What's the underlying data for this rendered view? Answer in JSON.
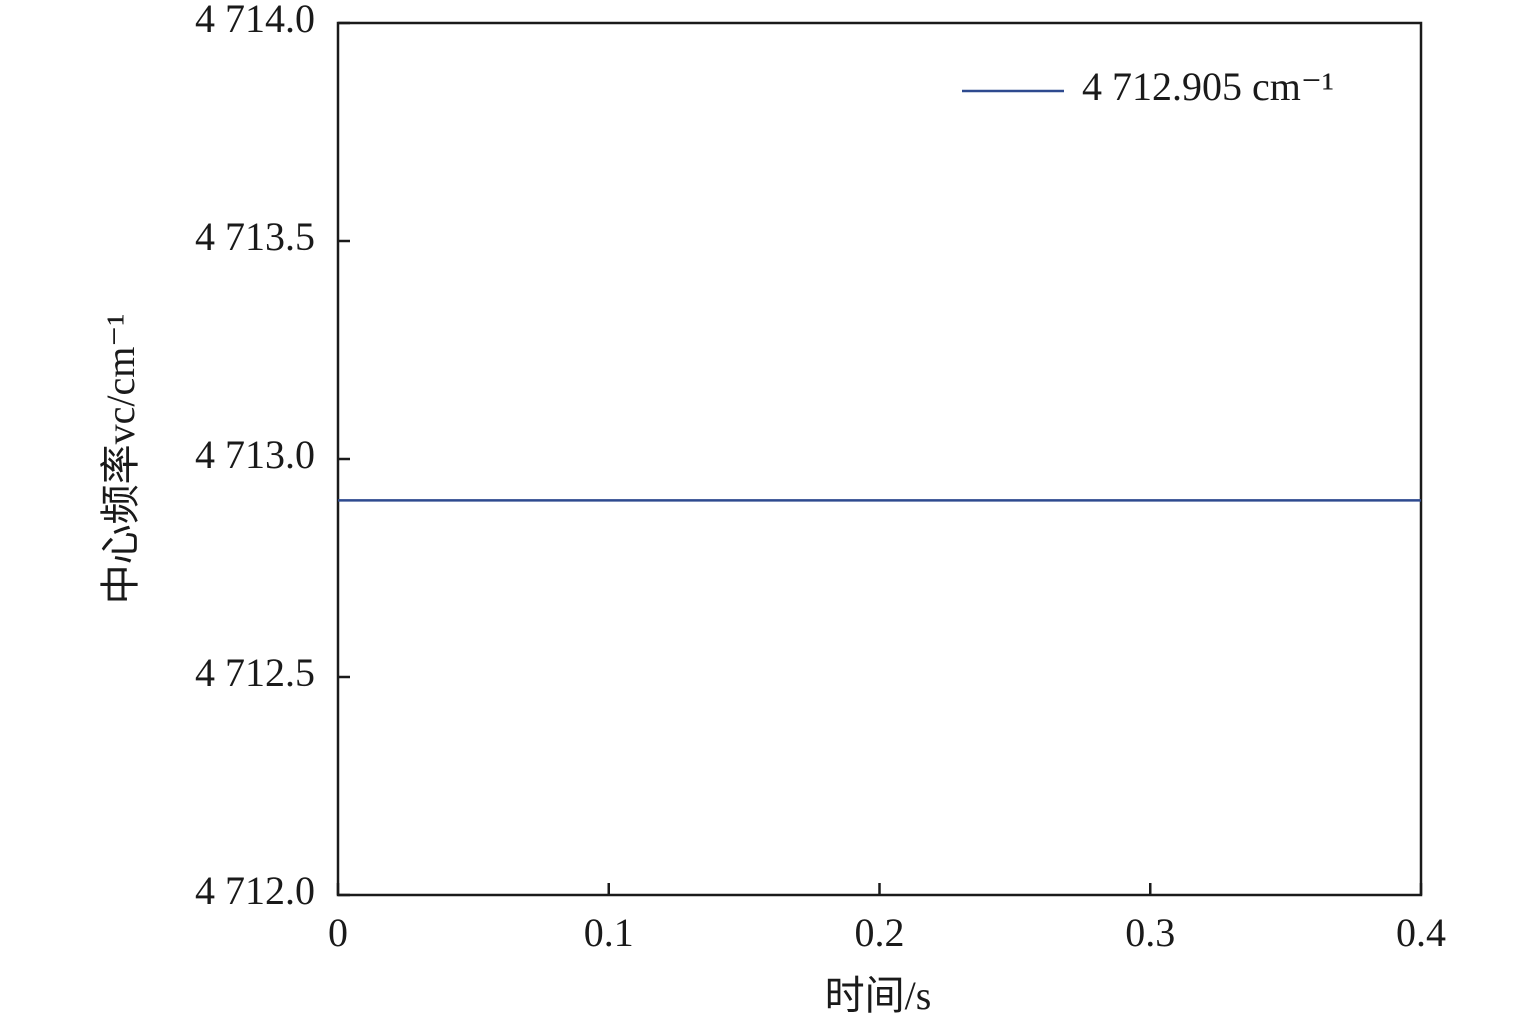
{
  "chart_data": {
    "type": "line",
    "x": [
      0,
      0.4
    ],
    "series": [
      {
        "name": "4 712.905 cm⁻¹",
        "color": "#2e4a8f",
        "values": [
          4712.905,
          4712.905
        ]
      }
    ],
    "xlabel": "时间/s",
    "ylabel": "中心频率vc/cm⁻¹",
    "xlim": [
      0,
      0.4
    ],
    "xticks": [
      0,
      0.1,
      0.2,
      0.3,
      0.4
    ],
    "ylim": [
      4712,
      4714
    ],
    "yticks": [
      {
        "value": 4712,
        "label": "4 712.0"
      },
      {
        "value": 4712.5,
        "label": "4 712.5"
      },
      {
        "value": 4713,
        "label": "4 713.0"
      },
      {
        "value": 4713.5,
        "label": "4 713.5"
      },
      {
        "value": 4714,
        "label": "4 714.0"
      }
    ],
    "grid": false,
    "legend": "upper right"
  }
}
